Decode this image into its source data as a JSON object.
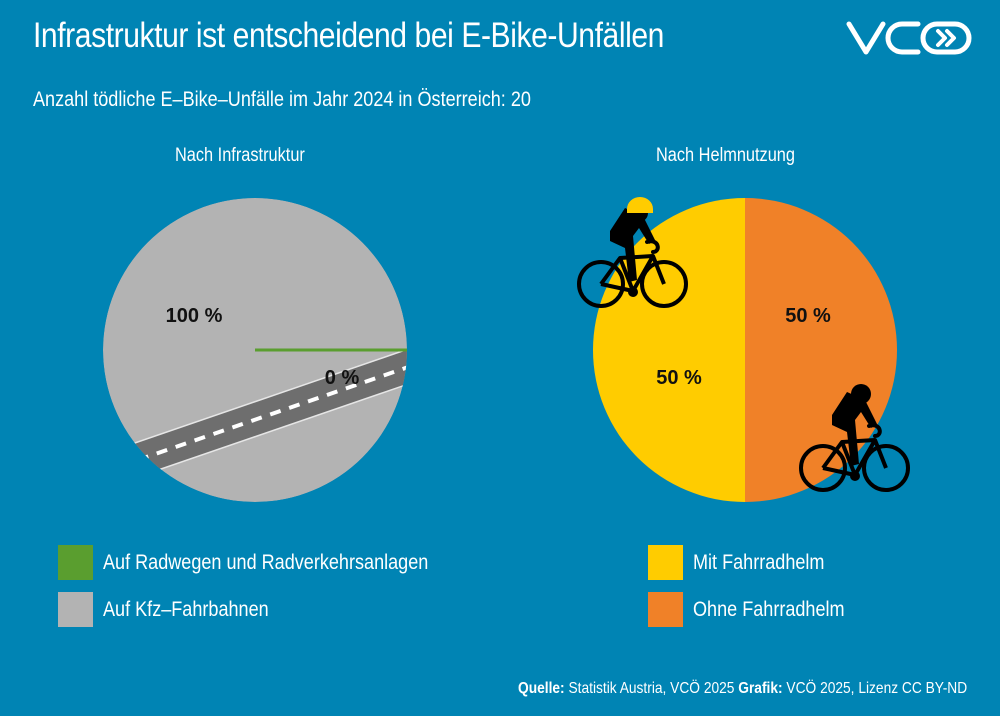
{
  "header": {
    "title": "Infrastruktur ist entscheidend bei E-Bike-Unfällen",
    "logo_text": "VCÖ",
    "subtitle": "Anzahl tödliche E–Bike–Unfälle im Jahr 2024 in Österreich: 20"
  },
  "colors": {
    "background": "#0084b4",
    "green": "#5a9e2f",
    "grey": "#b3b3b3",
    "road": "#6e6e6e",
    "yellow": "#ffcc00",
    "orange": "#f08128"
  },
  "chart_data": [
    {
      "type": "pie",
      "title": "Nach Infrastruktur",
      "categories": [
        "Auf Radwegen und Radverkehrsanlagen",
        "Auf Kfz–Fahrbahnen"
      ],
      "values": [
        0,
        100
      ],
      "labels": [
        "0 %",
        "100 %"
      ],
      "colors": [
        "#5a9e2f",
        "#b3b3b3"
      ],
      "unit": "%",
      "legend": "bottom",
      "decoration": "road-icon"
    },
    {
      "type": "pie",
      "title": "Nach Helmnutzung",
      "categories": [
        "Mit Fahrradhelm",
        "Ohne Fahrradhelm"
      ],
      "values": [
        50,
        50
      ],
      "labels": [
        "50 %",
        "50 %"
      ],
      "colors": [
        "#ffcc00",
        "#f08128"
      ],
      "unit": "%",
      "legend": "bottom",
      "decoration": [
        "cyclist-with-helmet-icon",
        "cyclist-without-helmet-icon"
      ]
    }
  ],
  "footer": {
    "source_label": "Quelle:",
    "source_text": " Statistik Austria, VCÖ 2025 ",
    "graphic_label": "Grafik:",
    "graphic_text": " VCÖ 2025, Lizenz CC BY-ND"
  }
}
